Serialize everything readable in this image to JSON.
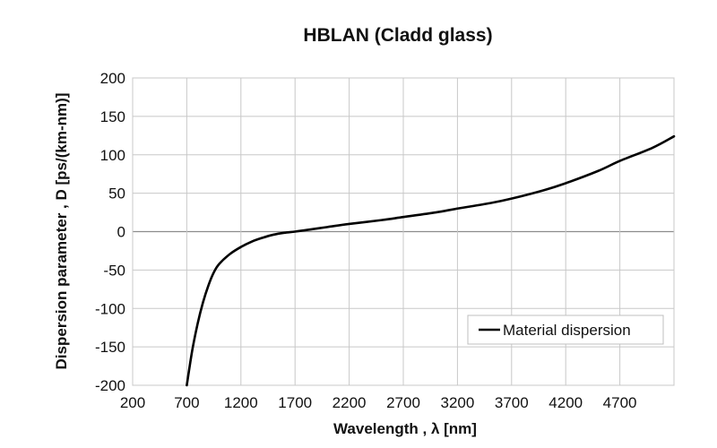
{
  "chart_data": {
    "type": "line",
    "title": "HBLAN (Cladd glass)",
    "xlabel": "Wavelength , λ [nm]",
    "ylabel": "Dispersion parameter , D [ps/(km-nm)]",
    "xlim": [
      200,
      5200
    ],
    "ylim": [
      -200,
      200
    ],
    "xticks": [
      200,
      700,
      1200,
      1700,
      2200,
      2700,
      3200,
      3700,
      4200,
      4700
    ],
    "yticks": [
      -200,
      -150,
      -100,
      -50,
      0,
      50,
      100,
      150,
      200
    ],
    "x_gridlines": [
      200,
      700,
      1200,
      1700,
      2200,
      2700,
      3200,
      3700,
      4200,
      4700,
      5200
    ],
    "grid": true,
    "legend_position": "bottom-right",
    "series": [
      {
        "name": "Material dispersion",
        "color": "#000000",
        "x": [
          700,
          750,
          800,
          850,
          900,
          950,
          1000,
          1100,
          1200,
          1300,
          1400,
          1500,
          1600,
          1700,
          1800,
          2000,
          2200,
          2500,
          2700,
          3000,
          3200,
          3500,
          3700,
          4000,
          4200,
          4500,
          4700,
          5000,
          5200
        ],
        "y": [
          -200,
          -155,
          -120,
          -92,
          -70,
          -53,
          -42,
          -29,
          -20,
          -13,
          -8,
          -4,
          -1.5,
          0,
          2,
          6,
          10,
          15,
          19,
          25,
          30,
          37,
          43,
          54,
          63,
          79,
          92,
          109,
          124
        ]
      }
    ]
  }
}
